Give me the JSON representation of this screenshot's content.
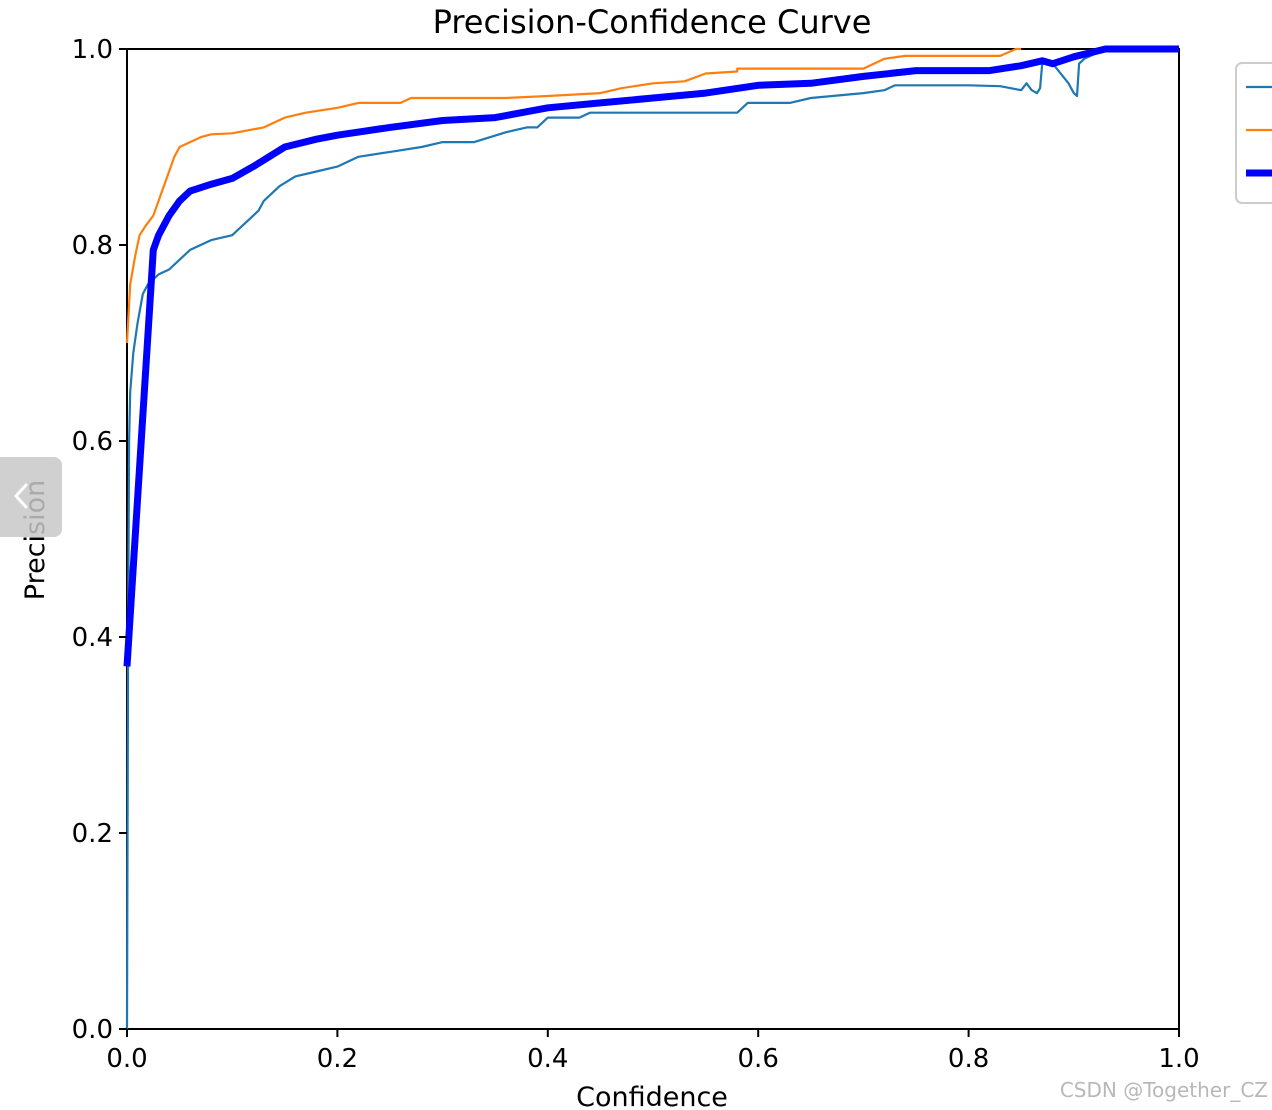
{
  "watermark": "CSDN @Together_CZ",
  "colors": {
    "series_1": "#1f77b4",
    "series_2": "#ff7f0e",
    "all_classes": "#0000ff",
    "axis": "#000000",
    "legend_border": "#cccccc",
    "handle": "#c8c8c8"
  },
  "side_handle": {
    "icon": "chevron-left-icon"
  },
  "chart_data": {
    "type": "line",
    "title": "Precision-Confidence Curve",
    "xlabel": "Confidence",
    "ylabel": "Precision",
    "xlim": [
      0,
      1
    ],
    "ylim": [
      0,
      1
    ],
    "xticks": [
      "0.0",
      "0.2",
      "0.4",
      "0.6",
      "0.8",
      "1.0"
    ],
    "yticks": [
      "0.0",
      "0.2",
      "0.4",
      "0.6",
      "0.8",
      "1.0"
    ],
    "grid": false,
    "legend": {
      "position": "top-right",
      "entries": [
        "",
        "",
        ""
      ]
    },
    "series": [
      {
        "color": "#1f77b4",
        "width": "thin",
        "points": [
          [
            0.0,
            0.0
          ],
          [
            0.001,
            0.4
          ],
          [
            0.002,
            0.6
          ],
          [
            0.003,
            0.65
          ],
          [
            0.006,
            0.69
          ],
          [
            0.01,
            0.72
          ],
          [
            0.015,
            0.75
          ],
          [
            0.02,
            0.76
          ],
          [
            0.03,
            0.77
          ],
          [
            0.04,
            0.775
          ],
          [
            0.05,
            0.785
          ],
          [
            0.06,
            0.795
          ],
          [
            0.07,
            0.8
          ],
          [
            0.08,
            0.805
          ],
          [
            0.1,
            0.81
          ],
          [
            0.11,
            0.82
          ],
          [
            0.125,
            0.835
          ],
          [
            0.13,
            0.845
          ],
          [
            0.145,
            0.86
          ],
          [
            0.16,
            0.87
          ],
          [
            0.18,
            0.875
          ],
          [
            0.2,
            0.88
          ],
          [
            0.22,
            0.89
          ],
          [
            0.25,
            0.895
          ],
          [
            0.28,
            0.9
          ],
          [
            0.3,
            0.905
          ],
          [
            0.33,
            0.905
          ],
          [
            0.36,
            0.915
          ],
          [
            0.38,
            0.92
          ],
          [
            0.39,
            0.92
          ],
          [
            0.4,
            0.93
          ],
          [
            0.43,
            0.93
          ],
          [
            0.44,
            0.935
          ],
          [
            0.5,
            0.935
          ],
          [
            0.58,
            0.935
          ],
          [
            0.59,
            0.945
          ],
          [
            0.63,
            0.945
          ],
          [
            0.65,
            0.95
          ],
          [
            0.7,
            0.955
          ],
          [
            0.72,
            0.958
          ],
          [
            0.73,
            0.963
          ],
          [
            0.8,
            0.963
          ],
          [
            0.83,
            0.962
          ],
          [
            0.85,
            0.958
          ],
          [
            0.855,
            0.965
          ],
          [
            0.86,
            0.958
          ],
          [
            0.865,
            0.955
          ],
          [
            0.868,
            0.96
          ],
          [
            0.87,
            0.985
          ],
          [
            0.88,
            0.985
          ],
          [
            0.895,
            0.965
          ],
          [
            0.9,
            0.955
          ],
          [
            0.903,
            0.952
          ],
          [
            0.905,
            0.985
          ],
          [
            0.91,
            0.99
          ],
          [
            0.93,
            1.0
          ],
          [
            1.0,
            1.0
          ]
        ]
      },
      {
        "color": "#ff7f0e",
        "width": "thin",
        "points": [
          [
            0.0,
            0.7
          ],
          [
            0.003,
            0.76
          ],
          [
            0.008,
            0.79
          ],
          [
            0.012,
            0.81
          ],
          [
            0.018,
            0.82
          ],
          [
            0.025,
            0.83
          ],
          [
            0.03,
            0.845
          ],
          [
            0.035,
            0.86
          ],
          [
            0.04,
            0.875
          ],
          [
            0.045,
            0.89
          ],
          [
            0.05,
            0.9
          ],
          [
            0.06,
            0.905
          ],
          [
            0.07,
            0.91
          ],
          [
            0.08,
            0.913
          ],
          [
            0.1,
            0.914
          ],
          [
            0.13,
            0.92
          ],
          [
            0.15,
            0.93
          ],
          [
            0.17,
            0.935
          ],
          [
            0.2,
            0.94
          ],
          [
            0.22,
            0.945
          ],
          [
            0.26,
            0.945
          ],
          [
            0.27,
            0.95
          ],
          [
            0.36,
            0.95
          ],
          [
            0.4,
            0.952
          ],
          [
            0.45,
            0.955
          ],
          [
            0.47,
            0.96
          ],
          [
            0.5,
            0.965
          ],
          [
            0.53,
            0.967
          ],
          [
            0.55,
            0.975
          ],
          [
            0.58,
            0.977
          ],
          [
            0.58,
            0.98
          ],
          [
            0.7,
            0.98
          ],
          [
            0.72,
            0.99
          ],
          [
            0.74,
            0.993
          ],
          [
            0.83,
            0.993
          ],
          [
            0.845,
            1.0
          ],
          [
            0.85,
            1.0
          ]
        ]
      },
      {
        "color": "#0000ff",
        "width": "thick",
        "points": [
          [
            0.0,
            0.37
          ],
          [
            0.025,
            0.795
          ],
          [
            0.03,
            0.81
          ],
          [
            0.04,
            0.83
          ],
          [
            0.05,
            0.845
          ],
          [
            0.06,
            0.855
          ],
          [
            0.08,
            0.862
          ],
          [
            0.1,
            0.868
          ],
          [
            0.12,
            0.88
          ],
          [
            0.15,
            0.9
          ],
          [
            0.18,
            0.908
          ],
          [
            0.2,
            0.912
          ],
          [
            0.25,
            0.92
          ],
          [
            0.3,
            0.927
          ],
          [
            0.35,
            0.93
          ],
          [
            0.4,
            0.94
          ],
          [
            0.45,
            0.945
          ],
          [
            0.5,
            0.95
          ],
          [
            0.55,
            0.955
          ],
          [
            0.6,
            0.963
          ],
          [
            0.65,
            0.965
          ],
          [
            0.7,
            0.972
          ],
          [
            0.75,
            0.978
          ],
          [
            0.8,
            0.978
          ],
          [
            0.82,
            0.978
          ],
          [
            0.85,
            0.983
          ],
          [
            0.87,
            0.988
          ],
          [
            0.88,
            0.985
          ],
          [
            0.9,
            0.992
          ],
          [
            0.93,
            1.0
          ],
          [
            1.0,
            1.0
          ]
        ]
      }
    ]
  }
}
